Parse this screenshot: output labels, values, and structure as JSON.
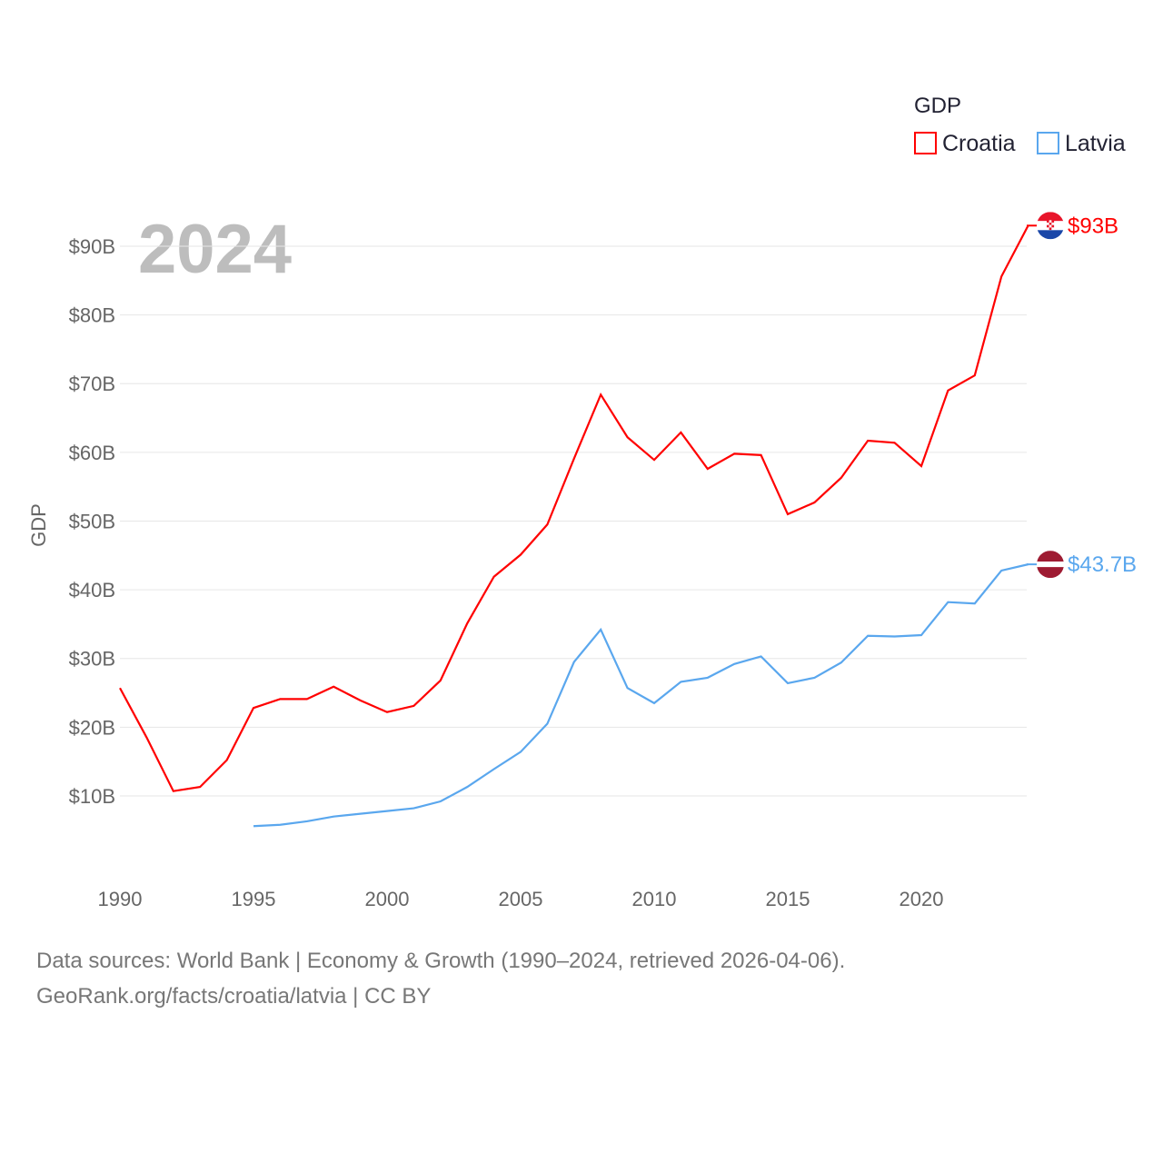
{
  "chart_data": {
    "type": "line",
    "title": "2024",
    "ylabel": "GDP",
    "legend_title": "GDP",
    "legend_position": "top-right",
    "x": [
      1990,
      1991,
      1992,
      1993,
      1994,
      1995,
      1996,
      1997,
      1998,
      1999,
      2000,
      2001,
      2002,
      2003,
      2004,
      2005,
      2006,
      2007,
      2008,
      2009,
      2010,
      2011,
      2012,
      2013,
      2014,
      2015,
      2016,
      2017,
      2018,
      2019,
      2020,
      2021,
      2022,
      2023,
      2024
    ],
    "xticks": [
      1990,
      1995,
      2000,
      2005,
      2010,
      2015,
      2020
    ],
    "yticks": [
      10,
      20,
      30,
      40,
      50,
      60,
      70,
      80,
      90
    ],
    "ytick_labels": [
      "$10B",
      "$20B",
      "$30B",
      "$40B",
      "$50B",
      "$60B",
      "$70B",
      "$80B",
      "$90B"
    ],
    "xlim": [
      1990,
      2024
    ],
    "ylim": [
      0,
      100
    ],
    "series": [
      {
        "name": "Croatia",
        "color": "#ff0000",
        "end_label": "$93B",
        "values": [
          25.7,
          18.5,
          10.7,
          11.3,
          15.2,
          22.8,
          24.1,
          24.1,
          25.9,
          23.9,
          22.2,
          23.1,
          26.8,
          35.1,
          41.9,
          45.1,
          49.5,
          59.1,
          68.4,
          62.2,
          58.9,
          62.9,
          57.6,
          59.8,
          59.6,
          51.0,
          52.7,
          56.3,
          61.7,
          61.4,
          58.0,
          69.0,
          71.2,
          85.6,
          93.0
        ]
      },
      {
        "name": "Latvia",
        "color": "#5aa7ee",
        "end_label": "$43.7B",
        "values": [
          null,
          null,
          null,
          null,
          null,
          5.6,
          5.8,
          6.3,
          7.0,
          7.4,
          7.8,
          8.2,
          9.2,
          11.3,
          13.9,
          16.4,
          20.5,
          29.5,
          34.2,
          25.7,
          23.5,
          26.6,
          27.2,
          29.2,
          30.3,
          26.4,
          27.2,
          29.4,
          33.3,
          33.2,
          33.4,
          38.2,
          38.0,
          42.8,
          43.7
        ]
      }
    ]
  },
  "footer": {
    "line1": "Data sources: World Bank | Economy & Growth (1990–2024, retrieved 2026-04-06).",
    "line2": "GeoRank.org/facts/croatia/latvia | CC BY"
  }
}
